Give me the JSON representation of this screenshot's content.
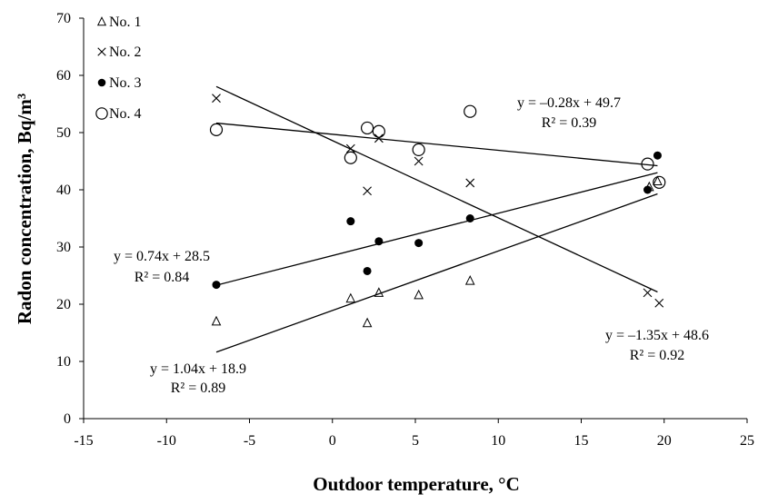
{
  "chart_data": {
    "type": "scatter",
    "xlabel": "Outdoor temperature, °C",
    "ylabel": "Radon concentration, Bq/m³",
    "xlim": [
      -15,
      25
    ],
    "ylim": [
      0,
      70
    ],
    "xticks": [
      -15,
      -10,
      -5,
      0,
      5,
      10,
      15,
      20,
      25
    ],
    "yticks": [
      0,
      10,
      20,
      30,
      40,
      50,
      60,
      70
    ],
    "grid": false,
    "legend_position": "top-left",
    "series": [
      {
        "name": "No. 1",
        "marker": "triangle-open",
        "points": [
          [
            -7,
            17
          ],
          [
            1.1,
            21
          ],
          [
            2.1,
            16.7
          ],
          [
            2.8,
            22
          ],
          [
            5.2,
            21.6
          ],
          [
            8.3,
            24.1
          ],
          [
            19.1,
            40.5
          ],
          [
            19.6,
            41.5
          ]
        ],
        "trendline": {
          "slope": 1.04,
          "intercept": 18.9,
          "x_range": [
            -7,
            19.6
          ]
        },
        "equation": "y = 1.04x + 18.9",
        "r2": "R² = 0.89"
      },
      {
        "name": "No. 2",
        "marker": "cross",
        "points": [
          [
            -7,
            56
          ],
          [
            1.1,
            47.2
          ],
          [
            2.1,
            39.8
          ],
          [
            2.8,
            49
          ],
          [
            5.2,
            45
          ],
          [
            8.3,
            41.2
          ],
          [
            19,
            22
          ],
          [
            19.7,
            20.2
          ]
        ],
        "trendline": {
          "slope": -1.35,
          "intercept": 48.6,
          "x_range": [
            -7,
            19.6
          ]
        },
        "equation": "y = –1.35x + 48.6",
        "r2": "R² = 0.92"
      },
      {
        "name": "No. 3",
        "marker": "filled-circle",
        "points": [
          [
            -7,
            23.4
          ],
          [
            1.1,
            34.5
          ],
          [
            2.1,
            25.8
          ],
          [
            2.8,
            31
          ],
          [
            5.2,
            30.7
          ],
          [
            8.3,
            35
          ],
          [
            19,
            40
          ],
          [
            19.6,
            46
          ]
        ],
        "trendline": {
          "slope": 0.74,
          "intercept": 28.5,
          "x_range": [
            -7,
            19.6
          ]
        },
        "equation": "y = 0.74x + 28.5",
        "r2": "R² = 0.84"
      },
      {
        "name": "No. 4",
        "marker": "open-circle",
        "points": [
          [
            -7,
            50.5
          ],
          [
            1.1,
            45.6
          ],
          [
            2.1,
            50.8
          ],
          [
            2.8,
            50.2
          ],
          [
            5.2,
            47
          ],
          [
            8.3,
            53.7
          ],
          [
            19,
            44.5
          ],
          [
            19.7,
            41.3
          ]
        ],
        "trendline": {
          "slope": -0.28,
          "intercept": 49.7,
          "x_range": [
            -7,
            19.6
          ]
        },
        "equation": "y = –0.28x + 49.7",
        "r2": "R² = 0.39"
      }
    ]
  }
}
